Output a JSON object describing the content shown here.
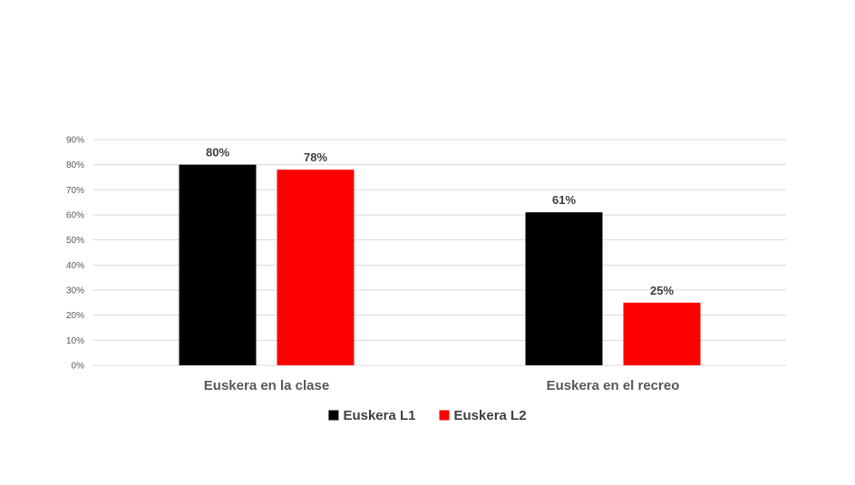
{
  "chart_data": {
    "type": "bar",
    "categories": [
      "Euskera en la clase",
      "Euskera en el recreo"
    ],
    "series": [
      {
        "name": "Euskera L1",
        "values": [
          80,
          61
        ],
        "color": "#000000",
        "labels": [
          "80%",
          "61%"
        ]
      },
      {
        "name": "Euskera L2",
        "values": [
          78,
          25
        ],
        "color": "#ff0000",
        "labels": [
          "78%",
          "25%"
        ]
      }
    ],
    "ylim": [
      0,
      90
    ],
    "yticks": [
      0,
      10,
      20,
      30,
      40,
      50,
      60,
      70,
      80,
      90
    ],
    "ytick_labels": [
      "0%",
      "10%",
      "20%",
      "30%",
      "40%",
      "50%",
      "60%",
      "70%",
      "80%",
      "90%"
    ],
    "grid": true,
    "legend_position": "bottom",
    "title": "",
    "xlabel": "",
    "ylabel": ""
  }
}
